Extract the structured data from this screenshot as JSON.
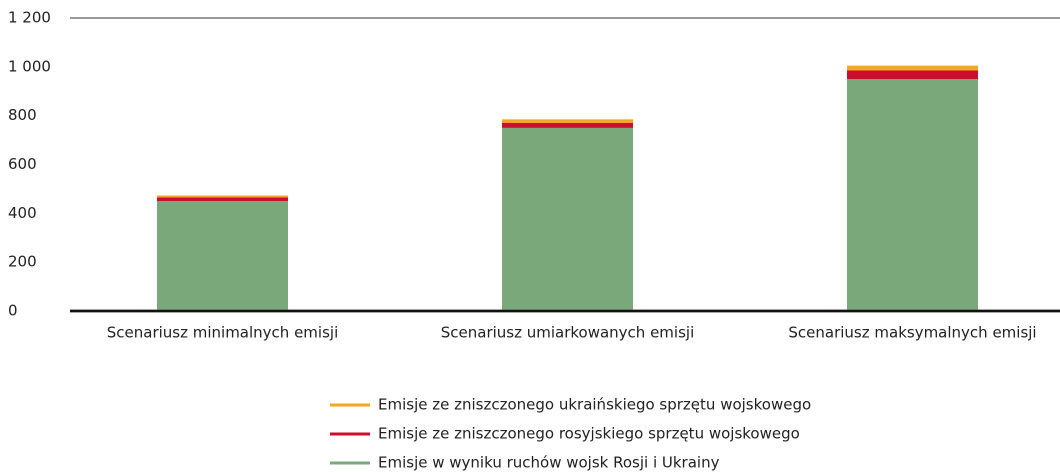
{
  "chart_data": {
    "type": "stacked_bar",
    "categories": [
      "Scenariusz minimalnych emisji",
      "Scenariusz umiarkowanych emisji",
      "Scenariusz maksymalnych emisji"
    ],
    "series": [
      {
        "name": "Emisje w wyniku ruchów wojsk Rosji i Ukrainy",
        "color": "#7aa87a",
        "values": [
          450,
          750,
          950
        ]
      },
      {
        "name": "Emisje ze zniszczonego rosyjskiego sprzętu wojskowego",
        "color": "#c8102e",
        "values": [
          15,
          20,
          35
        ]
      },
      {
        "name": "Emisje ze zniszczonego ukraińskiego sprzętu wojskowego",
        "color": "#f5a623",
        "values": [
          8,
          15,
          20
        ]
      }
    ],
    "ylim": [
      0,
      1200
    ],
    "yticks": [
      0,
      200,
      400,
      600,
      800,
      {
        "value": 1000,
        "label": "1 000"
      },
      {
        "value": 1200,
        "label": "1 200"
      }
    ]
  }
}
